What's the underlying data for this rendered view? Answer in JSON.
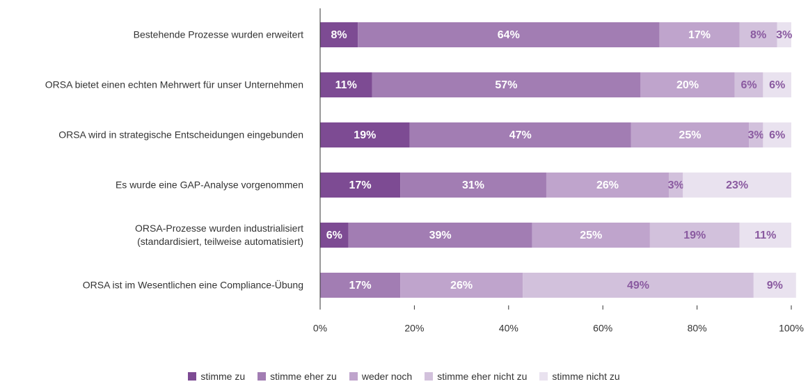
{
  "chart_data": {
    "type": "stacked_barh",
    "categories": [
      "Bestehende Prozesse wurden erweitert",
      "ORSA bietet einen echten Mehrwert für unser Unternehmen",
      "ORSA wird in strategische Entscheidungen eingebunden",
      "Es wurde eine GAP-Analyse vorgenommen",
      "ORSA-Prozesse wurden industrialisiert\n(standardisiert, teilweise automatisiert)",
      "ORSA ist im Wesentlichen eine Compliance-Übung"
    ],
    "series": [
      {
        "name": "stimme zu",
        "color": "#7d4b93",
        "values": [
          8,
          11,
          19,
          17,
          6,
          null
        ],
        "value_labels": [
          "8%",
          "11%",
          "19%",
          "17%",
          "6%",
          null
        ]
      },
      {
        "name": "stimme eher zu",
        "color": "#a27db3",
        "values": [
          64,
          57,
          47,
          31,
          39,
          17
        ],
        "value_labels": [
          "64%",
          "57%",
          "47%",
          "31%",
          "39%",
          "17%"
        ]
      },
      {
        "name": "weder noch",
        "color": "#bfa4cc",
        "values": [
          17,
          20,
          25,
          26,
          25,
          26
        ],
        "value_labels": [
          "17%",
          "20%",
          "25%",
          "26%",
          "25%",
          "26%"
        ]
      },
      {
        "name": "stimme eher nicht zu",
        "color": "#d2c1dc",
        "values": [
          8,
          6,
          3,
          3,
          19,
          49
        ],
        "value_labels": [
          "8%",
          "6%",
          "3%",
          "3%",
          "19%",
          "49%"
        ]
      },
      {
        "name": "stimme nicht zu",
        "color": "#e9e2ef",
        "values": [
          3,
          6,
          6,
          23,
          11,
          9
        ],
        "value_labels": [
          "3%",
          "6%",
          "6%",
          "23%",
          "11%",
          "9%"
        ]
      }
    ],
    "xlim": [
      0,
      100
    ],
    "xticks": [
      {
        "value": 0,
        "label": "0%"
      },
      {
        "value": 20,
        "label": "20%"
      },
      {
        "value": 40,
        "label": "40%"
      },
      {
        "value": 60,
        "label": "60%"
      },
      {
        "value": 80,
        "label": "80%"
      },
      {
        "value": 100,
        "label": "100%"
      }
    ],
    "legend": "bottom"
  }
}
